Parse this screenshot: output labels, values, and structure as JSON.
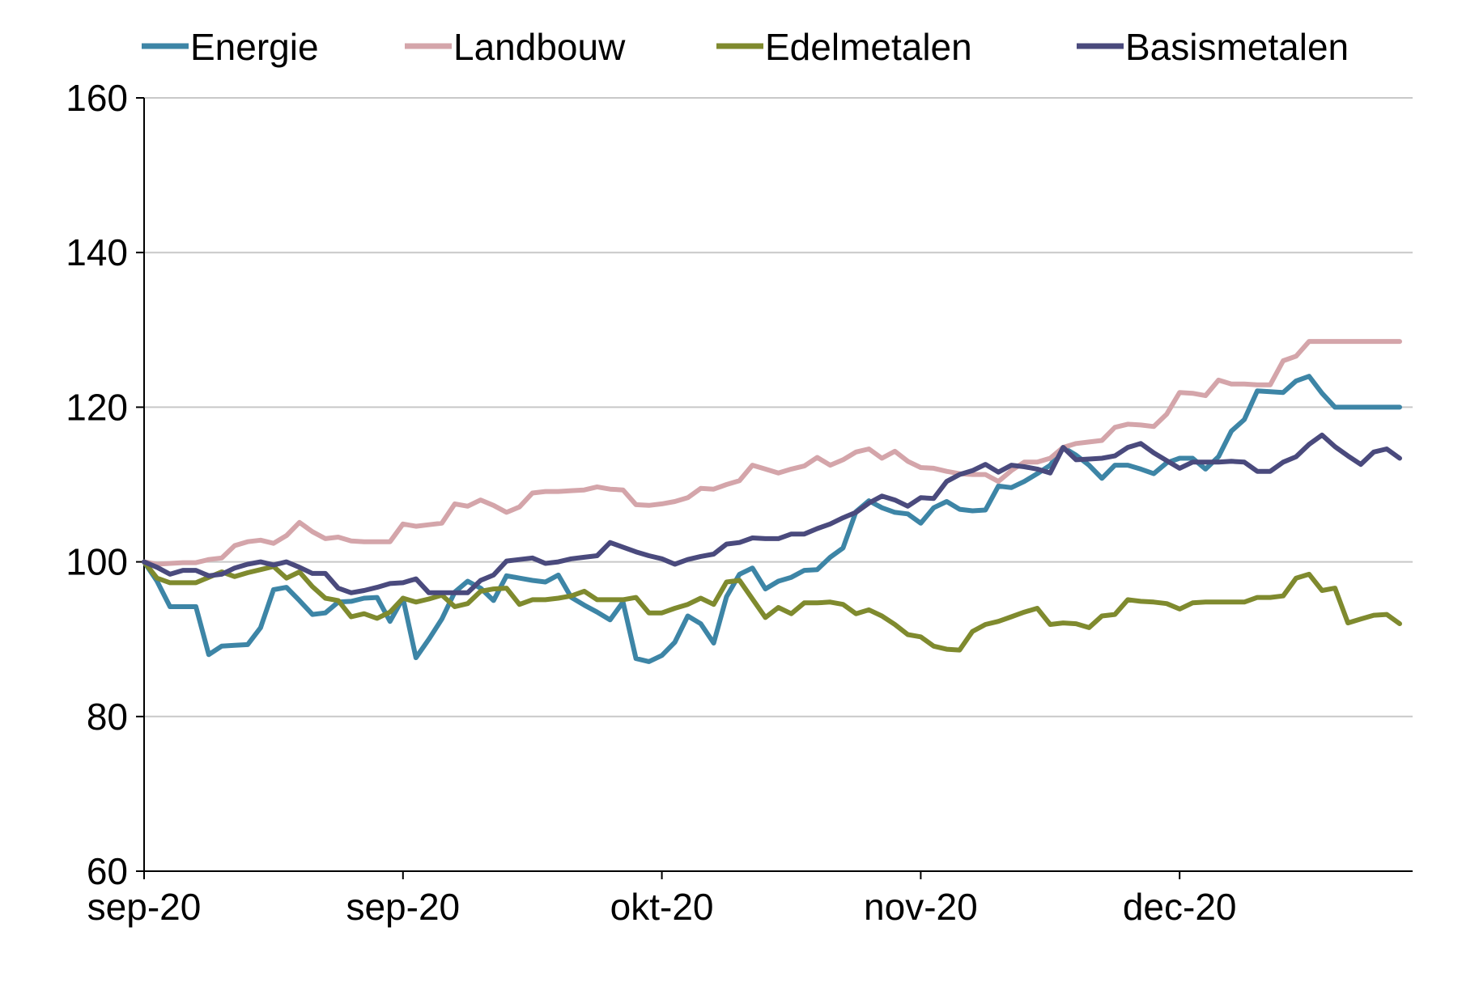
{
  "chart_data": {
    "type": "line",
    "title": "",
    "xlabel": "",
    "ylabel": "",
    "ylim": [
      60,
      160
    ],
    "yticks": [
      60,
      80,
      100,
      120,
      140,
      160
    ],
    "grid": "horizontal",
    "legend_position": "top",
    "x_tick_labels": [
      "sep-20",
      "sep-20",
      "okt-20",
      "nov-20",
      "dec-20"
    ],
    "x_tick_positions": [
      0,
      20,
      40,
      60,
      80
    ],
    "x": [
      0,
      1,
      2,
      3,
      4,
      5,
      6,
      7,
      8,
      9,
      10,
      11,
      12,
      13,
      14,
      15,
      16,
      17,
      18,
      19,
      20,
      21,
      22,
      23,
      24,
      25,
      26,
      27,
      28,
      29,
      30,
      31,
      32,
      33,
      34,
      35,
      36,
      37,
      38,
      39,
      40,
      41,
      42,
      43,
      44,
      45,
      46,
      47,
      48,
      49,
      50,
      51,
      52,
      53,
      54,
      55,
      56,
      57,
      58,
      59,
      60,
      61,
      62,
      63,
      64,
      65,
      66,
      67,
      68,
      69,
      70,
      71,
      72,
      73,
      74,
      75,
      76,
      77,
      78,
      79,
      80,
      81,
      82,
      83,
      84,
      85,
      86,
      87,
      88,
      89,
      90,
      91,
      92,
      93,
      94,
      95,
      96,
      97
    ],
    "series": [
      {
        "name": "Energie",
        "color": "#3d85a6",
        "values": [
          100,
          97.5,
          94.2,
          94.2,
          94.2,
          88,
          89.1,
          89.2,
          89.3,
          91.5,
          96.4,
          96.7,
          95,
          93.2,
          93.4,
          94.8,
          94.9,
          95.3,
          95.4,
          92.3,
          95.3,
          87.6,
          90,
          92.6,
          96.1,
          97.5,
          96.6,
          95,
          98.2,
          97.9,
          97.6,
          97.4,
          98.3,
          95.4,
          94.4,
          93.5,
          92.5,
          94.8,
          87.5,
          87.1,
          87.9,
          89.6,
          93,
          92,
          89.5,
          95.5,
          98.4,
          99.2,
          96.5,
          97.5,
          98,
          98.9,
          99,
          100.6,
          101.8,
          106.5,
          107.9,
          107,
          106.4,
          106.2,
          105,
          107,
          107.8,
          106.8,
          106.6,
          106.7,
          109.8,
          109.6,
          110.4,
          111.4,
          112.5,
          114.8,
          113.8,
          112.5,
          110.8,
          112.5,
          112.5,
          112,
          111.4,
          112.8,
          113.4,
          113.4,
          112,
          113.6,
          116.9,
          118.4,
          122.1,
          122,
          121.9,
          123.4,
          124,
          121.8,
          120,
          120,
          120,
          120,
          120,
          120
        ]
      },
      {
        "name": "Landbouw",
        "color": "#d4a5aa",
        "values": [
          100,
          99.7,
          99.8,
          99.9,
          99.9,
          100.3,
          100.5,
          102.1,
          102.6,
          102.8,
          102.4,
          103.4,
          105.1,
          103.9,
          103,
          103.2,
          102.7,
          102.6,
          102.6,
          102.6,
          104.9,
          104.6,
          104.8,
          105,
          107.5,
          107.2,
          108,
          107.3,
          106.4,
          107.1,
          108.9,
          109.1,
          109.1,
          109.2,
          109.3,
          109.7,
          109.4,
          109.3,
          107.4,
          107.3,
          107.5,
          107.8,
          108.3,
          109.5,
          109.4,
          110,
          110.5,
          112.5,
          112,
          111.5,
          112,
          112.4,
          113.5,
          112.5,
          113.2,
          114.2,
          114.6,
          113.4,
          114.3,
          113,
          112.2,
          112.1,
          111.7,
          111.4,
          111.3,
          111.3,
          110.4,
          111.8,
          112.9,
          112.9,
          113.4,
          114.8,
          115.3,
          115.5,
          115.7,
          117.4,
          117.8,
          117.7,
          117.5,
          119.1,
          121.9,
          121.8,
          121.5,
          123.5,
          123,
          123,
          122.9,
          122.9,
          126,
          126.6,
          128.5,
          128.5,
          128.5,
          128.5,
          128.5,
          128.5,
          128.5,
          128.5
        ]
      },
      {
        "name": "Edelmetalen",
        "color": "#7f8a2e",
        "values": [
          100,
          97.9,
          97.3,
          97.3,
          97.3,
          98,
          98.7,
          98.1,
          98.6,
          99,
          99.4,
          97.9,
          98.7,
          96.8,
          95.3,
          95,
          92.9,
          93.3,
          92.7,
          93.5,
          95.3,
          94.8,
          95.2,
          95.7,
          94.2,
          94.6,
          96.2,
          96.5,
          96.6,
          94.5,
          95.1,
          95.1,
          95.3,
          95.6,
          96.2,
          95.1,
          95.1,
          95.1,
          95.4,
          93.4,
          93.4,
          94,
          94.5,
          95.3,
          94.5,
          97.4,
          97.6,
          95.2,
          92.8,
          94.1,
          93.3,
          94.7,
          94.7,
          94.8,
          94.5,
          93.3,
          93.8,
          93,
          91.9,
          90.6,
          90.3,
          89.1,
          88.7,
          88.6,
          91,
          91.9,
          92.3,
          92.9,
          93.5,
          94,
          91.9,
          92.1,
          92,
          91.5,
          93,
          93.2,
          95.1,
          94.9,
          94.8,
          94.6,
          93.9,
          94.7,
          94.8,
          94.8,
          94.8,
          94.8,
          95.4,
          95.4,
          95.6,
          97.9,
          98.4,
          96.3,
          96.6,
          92.1,
          92.6,
          93.1,
          93.2,
          92
        ]
      },
      {
        "name": "Basismetalen",
        "color": "#4a4a7d",
        "values": [
          100,
          99.3,
          98.4,
          98.9,
          98.9,
          98.2,
          98.4,
          99.2,
          99.7,
          100,
          99.6,
          100,
          99.3,
          98.5,
          98.5,
          96.6,
          96,
          96.3,
          96.7,
          97.2,
          97.3,
          97.8,
          96,
          96,
          96,
          96,
          97.6,
          98.3,
          100.1,
          100.3,
          100.5,
          99.8,
          100,
          100.4,
          100.6,
          100.8,
          102.5,
          101.9,
          101.3,
          100.8,
          100.4,
          99.7,
          100.3,
          100.7,
          101,
          102.3,
          102.5,
          103.1,
          103,
          103,
          103.6,
          103.6,
          104.3,
          104.9,
          105.7,
          106.4,
          107.6,
          108.5,
          108,
          107.2,
          108.3,
          108.2,
          110.4,
          111.3,
          111.8,
          112.6,
          111.6,
          112.5,
          112.3,
          112,
          111.5,
          114.8,
          113.2,
          113.3,
          113.4,
          113.7,
          114.8,
          115.3,
          114.1,
          113.1,
          112.1,
          112.9,
          112.9,
          112.9,
          113,
          112.9,
          111.7,
          111.7,
          112.9,
          113.6,
          115.2,
          116.4,
          114.9,
          113.7,
          112.6,
          114.2,
          114.6,
          113.4
        ]
      }
    ]
  }
}
